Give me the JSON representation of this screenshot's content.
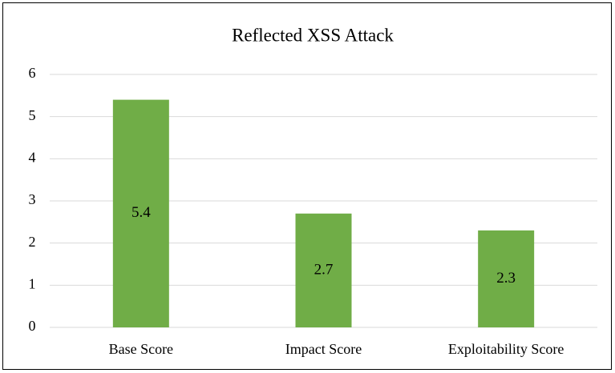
{
  "chart_data": {
    "type": "bar",
    "title": "Reflected XSS Attack",
    "categories": [
      "Base Score",
      "Impact Score",
      "Exploitability Score"
    ],
    "values": [
      5.4,
      2.7,
      2.3
    ],
    "color": "#70ad47",
    "ylim": [
      0,
      6
    ],
    "yticks": [
      0,
      1,
      2,
      3,
      4,
      5,
      6
    ],
    "grid": true,
    "data_labels": true
  }
}
